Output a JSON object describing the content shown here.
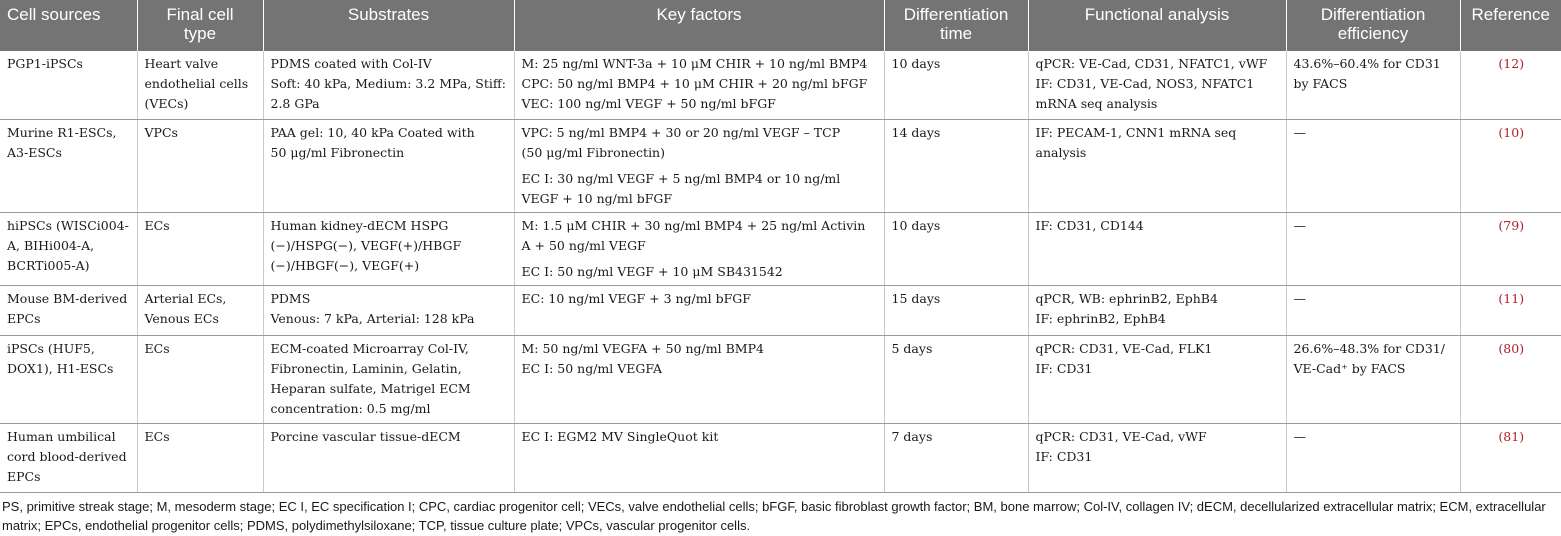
{
  "headers": [
    {
      "line1": "Cell sources",
      "line2": ""
    },
    {
      "line1": "Final cell",
      "line2": "type"
    },
    {
      "line1": "Substrates",
      "line2": ""
    },
    {
      "line1": "Key factors",
      "line2": ""
    },
    {
      "line1": "Differentiation",
      "line2": "time"
    },
    {
      "line1": "Functional analysis",
      "line2": ""
    },
    {
      "line1": "Differentiation",
      "line2": "efficiency"
    },
    {
      "line1": "Reference",
      "line2": ""
    }
  ],
  "rows": [
    {
      "source": [
        "PGP1-iPSCs"
      ],
      "cell_type": [
        "Heart valve",
        "endothelial cells",
        "(VECs)"
      ],
      "substrates": [
        "PDMS coated with Col-IV",
        "Soft: 40 kPa, Medium: 3.2 MPa, Stiff:",
        "2.8 GPa"
      ],
      "factors_a": [
        "M: 25 ng/ml WNT-3a + 10 μM CHIR + 10 ng/ml BMP4",
        "CPC: 50 ng/ml BMP4 + 10 μM CHIR + 20 ng/ml bFGF",
        "VEC: 100 ng/ml VEGF + 50 ng/ml bFGF"
      ],
      "factors_b": [],
      "time": "10 days",
      "functional": [
        "qPCR: VE-Cad, CD31, NFATC1, vWF",
        "IF: CD31, VE-Cad, NOS3, NFATC1",
        "mRNA seq analysis"
      ],
      "efficiency": [
        "43.6%–60.4% for CD31",
        "by FACS"
      ],
      "reference": "(12)"
    },
    {
      "source": [
        "Murine R1-ESCs,",
        "A3-ESCs"
      ],
      "cell_type": [
        "VPCs"
      ],
      "substrates": [
        "PAA gel: 10, 40 kPa Coated with",
        "50 μg/ml Fibronectin"
      ],
      "factors_a": [
        "VPC: 5 ng/ml BMP4 + 30 or 20 ng/ml VEGF – TCP",
        "(50 μg/ml Fibronectin)"
      ],
      "factors_b": [
        "EC I: 30 ng/ml VEGF + 5 ng/ml BMP4 or 10 ng/ml",
        "VEGF + 10 ng/ml bFGF"
      ],
      "time": "14 days",
      "functional": [
        "IF: PECAM-1, CNN1 mRNA seq",
        "analysis"
      ],
      "efficiency": [
        "—"
      ],
      "reference": "(10)"
    },
    {
      "source": [
        "hiPSCs (WISCi004-",
        "A, BIHi004-A,",
        "BCRTi005-A)"
      ],
      "cell_type": [
        "ECs"
      ],
      "substrates": [
        "Human kidney-dECM HSPG",
        "(−)/HSPG(−), VEGF(+)/HBGF",
        "(−)/HBGF(−), VEGF(+)"
      ],
      "factors_a": [
        "M: 1.5 μM CHIR + 30 ng/ml BMP4 + 25 ng/ml Activin",
        "A + 50 ng/ml VEGF"
      ],
      "factors_b": [
        "EC I: 50 ng/ml VEGF + 10 μM SB431542"
      ],
      "time": "10 days",
      "functional": [
        "IF: CD31, CD144"
      ],
      "efficiency": [
        "—"
      ],
      "reference": "(79)"
    },
    {
      "source": [
        "Mouse BM-derived",
        "EPCs"
      ],
      "cell_type": [
        "Arterial ECs,",
        "Venous ECs"
      ],
      "substrates": [
        "PDMS",
        "Venous: 7 kPa, Arterial: 128 kPa"
      ],
      "factors_a": [
        "EC: 10 ng/ml VEGF + 3 ng/ml bFGF"
      ],
      "factors_b": [],
      "time": "15 days",
      "functional": [
        "qPCR, WB: ephrinB2, EphB4",
        "IF: ephrinB2, EphB4"
      ],
      "efficiency": [
        "—"
      ],
      "reference": "(11)"
    },
    {
      "source": [
        "iPSCs (HUF5,",
        "DOX1), H1-ESCs"
      ],
      "cell_type": [
        "ECs"
      ],
      "substrates": [
        "ECM-coated Microarray Col-IV,",
        "Fibronectin, Laminin, Gelatin,",
        "Heparan sulfate, Matrigel ECM",
        "concentration: 0.5 mg/ml"
      ],
      "factors_a": [
        "M: 50 ng/ml VEGFA + 50 ng/ml BMP4",
        "EC I: 50 ng/ml VEGFA"
      ],
      "factors_b": [],
      "time": "5 days",
      "functional": [
        "qPCR: CD31, VE-Cad, FLK1",
        "IF: CD31"
      ],
      "efficiency": [
        "26.6%–48.3% for CD31/",
        "VE-Cad⁺ by FACS"
      ],
      "reference": "(80)"
    },
    {
      "source": [
        "Human umbilical",
        "cord blood-derived",
        "EPCs"
      ],
      "cell_type": [
        "ECs"
      ],
      "substrates": [
        "Porcine vascular tissue-dECM"
      ],
      "factors_a": [
        "EC I: EGM2 MV SingleQuot kit"
      ],
      "factors_b": [],
      "time": "7 days",
      "functional": [
        "qPCR: CD31, VE-Cad, vWF",
        "IF: CD31"
      ],
      "efficiency": [
        "—"
      ],
      "reference": "(81)"
    }
  ],
  "footnote": "PS, primitive streak stage; M, mesoderm stage; EC I, EC specification I; CPC, cardiac progenitor cell; VECs, valve endothelial cells; bFGF, basic fibroblast growth factor; BM, bone marrow; Col-IV, collagen IV; dECM, decellularized extracellular matrix; ECM, extracellular matrix; EPCs, endothelial progenitor cells; PDMS, polydimethylsiloxane; TCP, tissue culture plate; VPCs, vascular progenitor cells.",
  "colors": {
    "header_bg": "#747474",
    "reference_link": "#b0202a"
  }
}
